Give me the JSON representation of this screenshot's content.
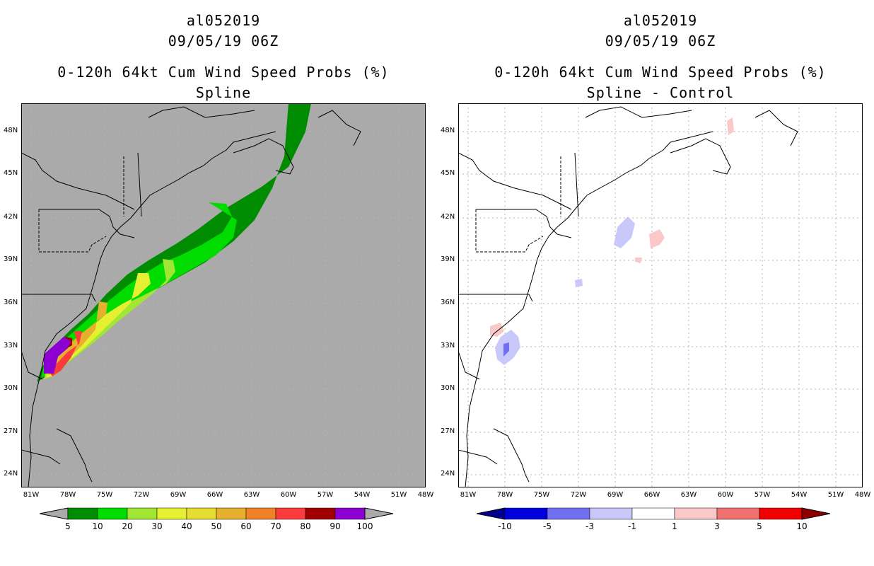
{
  "left": {
    "title_storm": "al052019",
    "title_time": "09/05/19 06Z",
    "title_product": "0-120h 64kt Cum Wind Speed Probs (%)",
    "title_method": "Spline"
  },
  "right": {
    "title_storm": "al052019",
    "title_time": "09/05/19 06Z",
    "title_product": "0-120h 64kt Cum Wind Speed Probs (%)",
    "title_method": "Spline - Control"
  },
  "lat_ticks": [
    "48N",
    "45N",
    "42N",
    "39N",
    "36N",
    "33N",
    "30N",
    "27N",
    "24N"
  ],
  "lon_ticks": [
    "81W",
    "78W",
    "75W",
    "72W",
    "69W",
    "66W",
    "63W",
    "60W",
    "57W",
    "54W",
    "51W",
    "48W"
  ],
  "colorbar_left": {
    "labels": [
      "5",
      "10",
      "20",
      "30",
      "40",
      "50",
      "60",
      "70",
      "80",
      "90",
      "100"
    ],
    "colors": [
      "#008c00",
      "#00dc00",
      "#a0e632",
      "#e6f032",
      "#e6dc32",
      "#e6af2d",
      "#f08228",
      "#fa3c3c",
      "#a00000",
      "#8c00d2"
    ],
    "end_color": "#aaaaaa"
  },
  "colorbar_right": {
    "labels": [
      "-10",
      "-5",
      "-3",
      "-1",
      "1",
      "3",
      "5",
      "10"
    ],
    "colors": [
      "#0000dc",
      "#7070f0",
      "#c8c8fa",
      "#ffffff",
      "#fac8c8",
      "#f07070",
      "#f00000"
    ],
    "end_low": "#00008c",
    "end_high": "#8c0000"
  },
  "colors": {
    "map_bg_left": "#aaaaaa",
    "map_bg_right": "#ffffff",
    "grid": "#b4b4b4"
  }
}
